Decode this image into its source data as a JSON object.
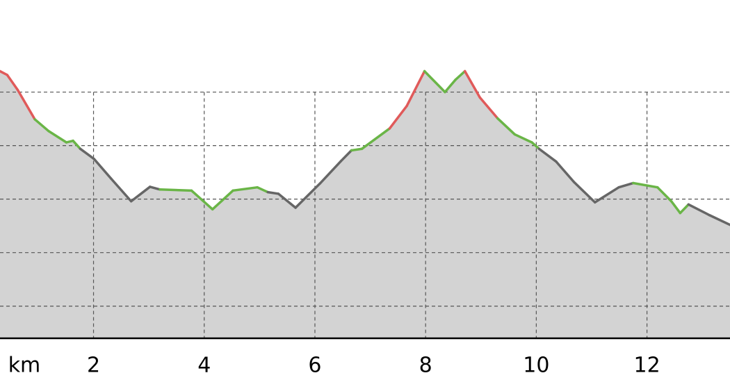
{
  "chart_data": {
    "type": "elevation-profile",
    "xlabel": "km",
    "x": [
      0.31,
      0.44,
      0.63,
      0.94,
      1.19,
      1.51,
      1.63,
      1.76,
      2.01,
      2.32,
      2.68,
      3.02,
      3.2,
      3.77,
      4.15,
      4.52,
      4.96,
      5.15,
      5.34,
      5.65,
      6.09,
      6.47,
      6.66,
      6.85,
      7.35,
      7.66,
      7.98,
      8.35,
      8.54,
      8.71,
      8.98,
      9.3,
      9.61,
      9.92,
      10.05,
      10.36,
      10.68,
      11.06,
      11.49,
      11.75,
      12.19,
      12.44,
      12.6,
      12.75,
      13.13,
      13.5
    ],
    "values": [
      4.39,
      4.32,
      4.04,
      3.49,
      3.27,
      3.06,
      3.09,
      2.94,
      2.75,
      2.38,
      1.96,
      2.23,
      2.18,
      2.16,
      1.81,
      2.16,
      2.22,
      2.13,
      2.1,
      1.84,
      2.29,
      2.71,
      2.91,
      2.94,
      3.32,
      3.74,
      4.39,
      4.0,
      4.23,
      4.39,
      3.9,
      3.51,
      3.21,
      3.06,
      2.94,
      2.7,
      2.32,
      1.94,
      2.22,
      2.3,
      2.22,
      1.96,
      1.74,
      1.9,
      1.7,
      1.52
    ],
    "segment_colors": [
      "#e05a5a",
      "#e05a5a",
      "#e05a5a",
      "#6ab547",
      "#6ab547",
      "#6ab547",
      "#6ab547",
      "#666666",
      "#666666",
      "#666666",
      "#666666",
      "#666666",
      "#6ab547",
      "#6ab547",
      "#6ab547",
      "#6ab547",
      "#6ab547",
      "#666666",
      "#666666",
      "#666666",
      "#666666",
      "#666666",
      "#6ab547",
      "#6ab547",
      "#e05a5a",
      "#e05a5a",
      "#6ab547",
      "#6ab547",
      "#6ab547",
      "#e05a5a",
      "#e05a5a",
      "#6ab547",
      "#6ab547",
      "#6ab547",
      "#666666",
      "#666666",
      "#666666",
      "#666666",
      "#666666",
      "#6ab547",
      "#6ab547",
      "#6ab547",
      "#6ab547",
      "#666666",
      "#666666"
    ],
    "area_color": "#d3d3d3",
    "xlim": [
      0.31,
      13.5
    ],
    "xticks": [
      2,
      4,
      6,
      8,
      10,
      12
    ],
    "ylim": [
      -0.6,
      5.72
    ],
    "yticks": [
      0,
      1,
      2,
      3,
      4
    ],
    "grid": true
  }
}
